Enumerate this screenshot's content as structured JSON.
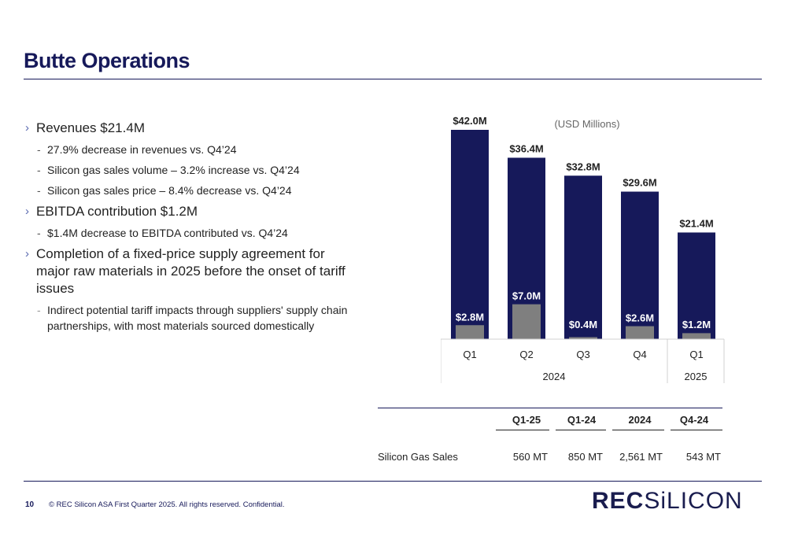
{
  "page": {
    "title": "Butte Operations",
    "page_number": "10",
    "footer": "© REC Silicon ASA First Quarter 2025. All rights reserved. Confidential.",
    "logo_part1": "REC",
    "logo_part2": "SiLICON"
  },
  "bullets": [
    {
      "text": "Revenues $21.4M",
      "subs": [
        "27.9% decrease in revenues vs. Q4’24",
        "Silicon gas sales volume – 3.2% increase vs. Q4’24",
        "Silicon gas sales price – 8.4% decrease vs. Q4’24"
      ]
    },
    {
      "text": "EBITDA contribution $1.2M",
      "subs": [
        "$1.4M decrease to EBITDA contributed vs. Q4’24"
      ]
    },
    {
      "text": "Completion of a fixed-price supply agreement for major raw materials in 2025 before the onset of tariff issues",
      "subs": [
        "Indirect potential tariff impacts through suppliers' supply chain partnerships, with most materials sourced domestically"
      ]
    }
  ],
  "chart_data": {
    "type": "bar",
    "unit_note": "(USD Millions)",
    "categories": [
      "Q1",
      "Q2",
      "Q3",
      "Q4",
      "Q1"
    ],
    "groups": [
      {
        "label": "2024",
        "span": 4
      },
      {
        "label": "2025",
        "span": 1
      }
    ],
    "series": [
      {
        "values": [
          42.0,
          36.4,
          32.8,
          29.6,
          21.4
        ],
        "labels": [
          "$42.0M",
          "$36.4M",
          "$32.8M",
          "$29.6M",
          "$21.4M"
        ],
        "color": "#16195a"
      },
      {
        "values": [
          2.8,
          7.0,
          0.4,
          2.6,
          1.2
        ],
        "labels": [
          "$2.8M",
          "$7.0M",
          "$0.4M",
          "$2.6M",
          "$1.2M"
        ],
        "color": "#7f7f7f"
      }
    ],
    "ylim": [
      0,
      42
    ]
  },
  "table": {
    "headers": [
      "Q1-25",
      "Q1-24",
      "2024",
      "Q4-24"
    ],
    "row_label": "Silicon Gas Sales",
    "row_values": [
      "560 MT",
      "850 MT",
      "2,561 MT",
      "543 MT"
    ]
  }
}
